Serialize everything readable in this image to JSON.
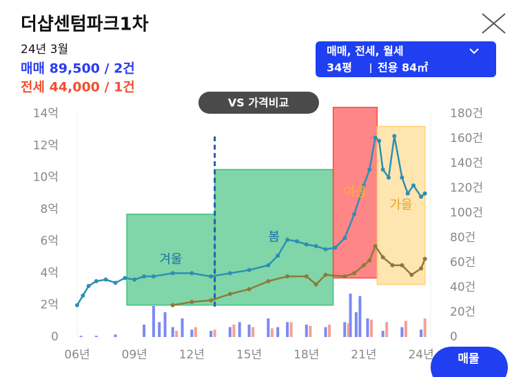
{
  "header": {
    "title": "더샵센텀파크1차"
  },
  "info": {
    "date": "24년 3월",
    "sale": "매매 89,500 / 2건",
    "jeonse": "전세 44,000 / 1건"
  },
  "filter": {
    "deal_types": "매매, 전세, 월세",
    "size_pyeong": "34평",
    "size_area": "전용 84㎡"
  },
  "compare_button": "VS 가격비교",
  "listing_button": "매물",
  "chart_data": {
    "type": "line",
    "xlim": [
      2006,
      2024.5
    ],
    "xticks": [
      {
        "value": 2006,
        "label": "06년"
      },
      {
        "value": 2009,
        "label": "09년"
      },
      {
        "value": 2012,
        "label": "12년"
      },
      {
        "value": 2015,
        "label": "15년"
      },
      {
        "value": 2018,
        "label": "18년"
      },
      {
        "value": 2021,
        "label": "21년"
      },
      {
        "value": 2024,
        "label": "24년"
      }
    ],
    "ylim": [
      0,
      14
    ],
    "yticks": [
      0,
      {
        "value": 2,
        "label": "2억"
      },
      {
        "value": 4,
        "label": "4억"
      },
      {
        "value": 6,
        "label": "6억"
      },
      {
        "value": 8,
        "label": "8억"
      },
      {
        "value": 10,
        "label": "10억"
      },
      {
        "value": 12,
        "label": "12억"
      },
      {
        "value": 14,
        "label": "14억"
      }
    ],
    "y2lim": [
      0,
      180
    ],
    "y2ticks": [
      0,
      {
        "value": 20,
        "label": "20건"
      },
      {
        "value": 40,
        "label": "40건"
      },
      {
        "value": 60,
        "label": "60건"
      },
      {
        "value": 80,
        "label": "80건"
      },
      {
        "value": 100,
        "label": "100건"
      },
      {
        "value": 120,
        "label": "120건"
      },
      {
        "value": 140,
        "label": "140건"
      },
      {
        "value": 160,
        "label": "160건"
      },
      {
        "value": 180,
        "label": "180건"
      }
    ],
    "annotations": [
      {
        "label": "겨울",
        "x": [
          2008.6,
          2013.2
        ],
        "y": [
          2,
          7.7
        ],
        "color": "#3cc07a",
        "text_color": "#1a6faa"
      },
      {
        "label": "봄",
        "x": [
          2013.2,
          2019.4
        ],
        "y": [
          2,
          10.5
        ],
        "color": "#3cc07a",
        "text_color": "#1a6faa"
      },
      {
        "label": "여름",
        "x": [
          2019.4,
          2021.7
        ],
        "y": [
          3.7,
          14.4
        ],
        "color": "#ff4545",
        "text_color": "#ffb030"
      },
      {
        "label": "가을",
        "x": [
          2021.7,
          2024.2
        ],
        "y": [
          3.3,
          13.2
        ],
        "color": "#ffd070",
        "text_color": "#e8a020"
      }
    ],
    "series": [
      {
        "color": "#2b8fb3",
        "x": [
          2006.0,
          2006.3,
          2006.6,
          2007.0,
          2007.5,
          2008.0,
          2008.5,
          2009.0,
          2009.5,
          2010.0,
          2011.0,
          2012.0,
          2013.0,
          2014.0,
          2015.0,
          2016.0,
          2016.5,
          2017.0,
          2017.5,
          2018.0,
          2018.5,
          2019.0,
          2019.5,
          2020.0,
          2020.5,
          2021.0,
          2021.3,
          2021.6,
          2021.8,
          2022.0,
          2022.3,
          2022.6,
          2023.0,
          2023.3,
          2023.6,
          2024.0,
          2024.2
        ],
        "values": [
          2.0,
          2.6,
          3.2,
          3.5,
          3.6,
          3.4,
          3.7,
          3.6,
          3.8,
          3.8,
          4.0,
          4.0,
          3.8,
          4.0,
          4.2,
          4.5,
          5.1,
          6.1,
          6.0,
          5.8,
          5.7,
          5.5,
          5.6,
          6.2,
          7.7,
          9.5,
          10.5,
          12.5,
          12.3,
          10.5,
          10.0,
          12.6,
          10.0,
          9.0,
          9.5,
          8.8,
          9.0
        ]
      },
      {
        "color": "#8c7a3a",
        "x": [
          2011.0,
          2012.0,
          2013.0,
          2014.0,
          2015.0,
          2016.0,
          2017.0,
          2018.0,
          2018.5,
          2019.0,
          2020.0,
          2020.5,
          2021.0,
          2021.3,
          2021.6,
          2022.0,
          2022.5,
          2023.0,
          2023.5,
          2024.0,
          2024.2
        ],
        "values": [
          2.0,
          2.2,
          2.3,
          2.7,
          3.0,
          3.5,
          3.8,
          3.8,
          3.3,
          3.9,
          3.8,
          4.0,
          4.5,
          4.8,
          5.7,
          5.0,
          4.5,
          4.5,
          3.9,
          4.3,
          4.9
        ]
      },
      {
        "type": "bar",
        "axis": "y2",
        "color": "#5b6cf0",
        "x": [
          2006.2,
          2007.0,
          2008.0,
          2009.5,
          2010.0,
          2010.3,
          2010.6,
          2011.0,
          2011.5,
          2012.0,
          2013.0,
          2014.0,
          2014.5,
          2015.0,
          2016.0,
          2016.5,
          2017.0,
          2018.0,
          2019.0,
          2020.0,
          2020.3,
          2020.6,
          2020.8,
          2021.2,
          2022.0,
          2023.0,
          2024.0
        ],
        "values": [
          1,
          1,
          2,
          10,
          25,
          12,
          20,
          8,
          15,
          6,
          5,
          8,
          12,
          10,
          15,
          8,
          12,
          10,
          8,
          12,
          35,
          20,
          33,
          15,
          5,
          8,
          6
        ]
      },
      {
        "type": "bar",
        "axis": "y2",
        "color": "#f08a7a",
        "x": [
          2011.2,
          2012.2,
          2013.2,
          2014.2,
          2015.2,
          2016.2,
          2017.2,
          2018.2,
          2019.2,
          2020.2,
          2021.4,
          2022.2,
          2023.2,
          2024.2
        ],
        "values": [
          5,
          8,
          6,
          10,
          8,
          7,
          12,
          9,
          10,
          11,
          14,
          12,
          13,
          15
        ]
      }
    ]
  }
}
